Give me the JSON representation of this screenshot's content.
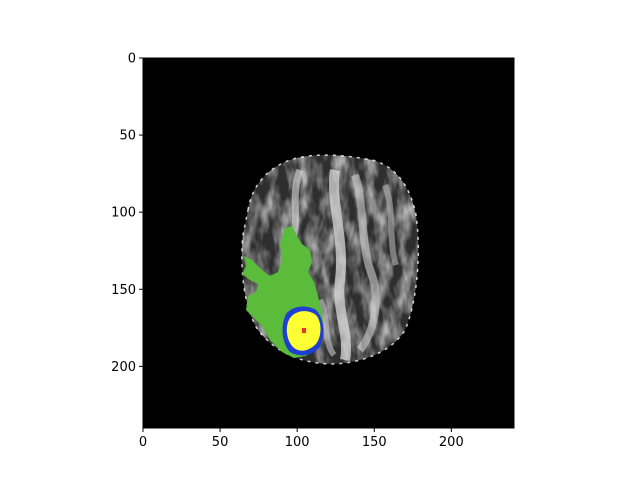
{
  "image": {
    "type": "mri-slice-segmentation-overlay",
    "colors": {
      "background": "#000000",
      "edema": "#5bbb3b",
      "enhancing": "#ffff33",
      "boundary": "#1f3fd0",
      "core": "#e8322a",
      "brain_light": "#d8d8d8",
      "brain_mid": "#8a8a8a",
      "brain_dark": "#3a3a3a"
    }
  },
  "axes": {
    "xlim": [
      0,
      240
    ],
    "ylim": [
      240,
      0
    ],
    "x_ticks": [
      "0",
      "50",
      "100",
      "150",
      "200"
    ],
    "y_ticks": [
      "0",
      "50",
      "100",
      "150",
      "200"
    ]
  }
}
